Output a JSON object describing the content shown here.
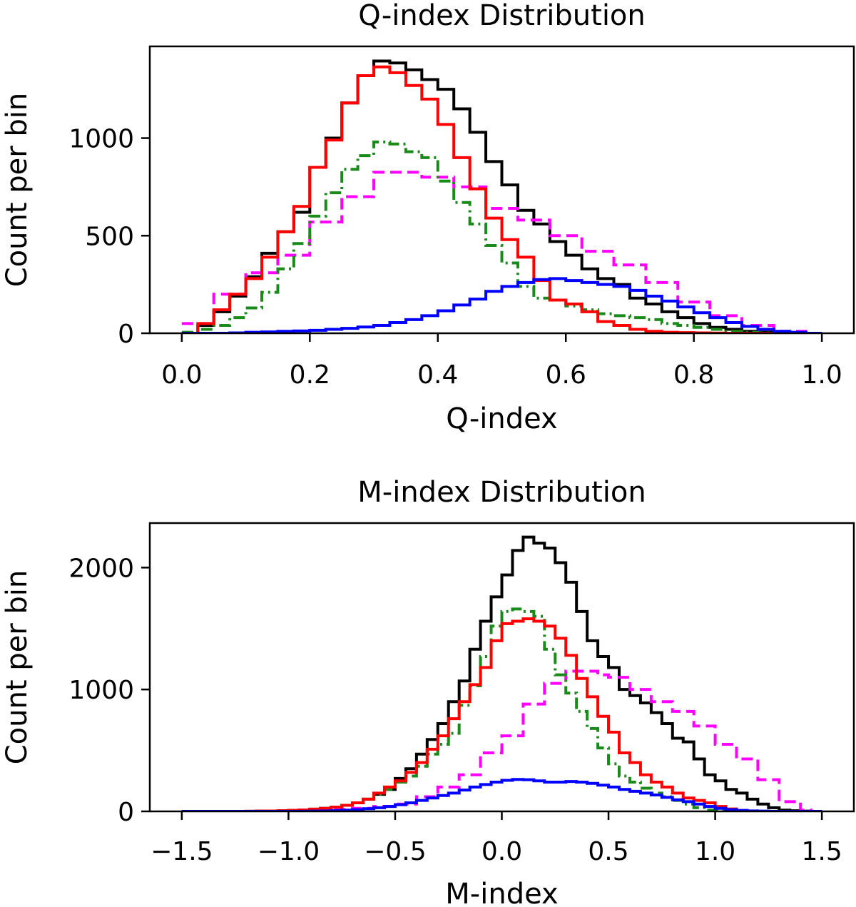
{
  "chart_data": [
    {
      "type": "histogram",
      "title": "Q-index Distribution",
      "xlabel": "Q-index",
      "ylabel": "Count per bin",
      "xlim": [
        -0.05,
        1.05
      ],
      "ylim": [
        0,
        1470
      ],
      "xticks": [
        "0.0",
        "0.2",
        "0.4",
        "0.6",
        "0.8",
        "1.0"
      ],
      "xtick_values": [
        0.0,
        0.2,
        0.4,
        0.6,
        0.8,
        1.0
      ],
      "yticks": [
        "0",
        "500",
        "1000"
      ],
      "ytick_values": [
        0,
        500,
        1000
      ],
      "bin_edges_start": 0.0,
      "bin_width": 0.025,
      "series": [
        {
          "color": "#000000",
          "style": "solid",
          "values": [
            0,
            40,
            110,
            190,
            290,
            410,
            520,
            620,
            850,
            1000,
            1180,
            1320,
            1395,
            1385,
            1350,
            1300,
            1250,
            1150,
            1030,
            880,
            760,
            630,
            560,
            470,
            400,
            330,
            280,
            250,
            180,
            150,
            110,
            80,
            50,
            30,
            20,
            10,
            5,
            2,
            1,
            0
          ]
        },
        {
          "color": "#ff00ff",
          "style": "dashed",
          "values": [
            50,
            50,
            200,
            200,
            310,
            310,
            400,
            400,
            570,
            570,
            700,
            700,
            825,
            825,
            825,
            800,
            800,
            750,
            750,
            640,
            640,
            580,
            580,
            500,
            500,
            420,
            420,
            350,
            350,
            260,
            260,
            160,
            160,
            90,
            90,
            40,
            40,
            10,
            10,
            0
          ]
        },
        {
          "color": "#1a8a1a",
          "style": "dashdot",
          "values": [
            5,
            20,
            40,
            80,
            130,
            210,
            330,
            460,
            600,
            720,
            840,
            910,
            980,
            970,
            930,
            900,
            780,
            670,
            560,
            450,
            360,
            240,
            180,
            170,
            140,
            120,
            100,
            90,
            80,
            70,
            50,
            40,
            30,
            20,
            10,
            5,
            2,
            1,
            0,
            0
          ]
        },
        {
          "color": "#ff0000",
          "style": "solid",
          "values": [
            0,
            50,
            120,
            200,
            280,
            390,
            520,
            650,
            850,
            990,
            1180,
            1320,
            1365,
            1335,
            1270,
            1200,
            1070,
            900,
            740,
            590,
            480,
            390,
            270,
            170,
            150,
            110,
            60,
            40,
            20,
            10,
            5,
            3,
            2,
            1,
            0,
            0,
            0,
            0,
            0,
            0
          ]
        },
        {
          "color": "#0000ff",
          "style": "solid",
          "values": [
            0,
            0,
            0,
            2,
            5,
            7,
            10,
            12,
            15,
            20,
            25,
            32,
            40,
            55,
            70,
            90,
            115,
            145,
            175,
            215,
            240,
            260,
            275,
            280,
            270,
            260,
            250,
            240,
            220,
            190,
            165,
            135,
            105,
            80,
            55,
            35,
            20,
            10,
            5,
            0
          ]
        }
      ]
    },
    {
      "type": "histogram",
      "title": "M-index Distribution",
      "xlabel": "M-index",
      "ylabel": "Count per bin",
      "xlim": [
        -1.65,
        1.65
      ],
      "ylim": [
        0,
        2365
      ],
      "xticks": [
        "−1.5",
        "−1.0",
        "−0.5",
        "0.0",
        "0.5",
        "1.0",
        "1.5"
      ],
      "xtick_values": [
        -1.5,
        -1.0,
        -0.5,
        0.0,
        0.5,
        1.0,
        1.5
      ],
      "yticks": [
        "0",
        "1000",
        "2000"
      ],
      "ytick_values": [
        0,
        1000,
        2000
      ],
      "bin_edges_start": -1.5,
      "bin_width": 0.05,
      "series": [
        {
          "color": "#000000",
          "style": "solid",
          "values": [
            0,
            0,
            0,
            0,
            0,
            0,
            1,
            2,
            3,
            5,
            8,
            12,
            18,
            25,
            35,
            50,
            70,
            100,
            140,
            180,
            270,
            350,
            470,
            590,
            720,
            900,
            1070,
            1330,
            1560,
            1760,
            1940,
            2140,
            2250,
            2200,
            2160,
            2040,
            1880,
            1640,
            1400,
            1270,
            1180,
            1000,
            950,
            890,
            810,
            720,
            600,
            570,
            430,
            300,
            250,
            180,
            150,
            100,
            60,
            30,
            10,
            5,
            2,
            0
          ]
        },
        {
          "color": "#ff00ff",
          "style": "dashed",
          "values": [
            0,
            0,
            0,
            0,
            0,
            0,
            0,
            0,
            0,
            0,
            3,
            3,
            8,
            8,
            15,
            15,
            25,
            25,
            40,
            40,
            60,
            60,
            120,
            120,
            200,
            200,
            300,
            300,
            480,
            480,
            620,
            620,
            880,
            880,
            1050,
            1050,
            1150,
            1150,
            1150,
            1120,
            1100,
            1100,
            1000,
            1000,
            900,
            900,
            820,
            820,
            700,
            700,
            550,
            550,
            430,
            430,
            260,
            260,
            80,
            80,
            10,
            0
          ]
        },
        {
          "color": "#1a8a1a",
          "style": "dashdot",
          "values": [
            0,
            0,
            0,
            0,
            0,
            0,
            0,
            1,
            2,
            4,
            6,
            10,
            16,
            24,
            35,
            50,
            70,
            100,
            140,
            180,
            240,
            290,
            370,
            470,
            550,
            640,
            870,
            1030,
            1270,
            1520,
            1640,
            1660,
            1640,
            1600,
            1330,
            1120,
            970,
            820,
            680,
            520,
            390,
            290,
            240,
            190,
            150,
            120,
            90,
            60,
            30,
            10,
            5,
            2,
            0,
            0,
            0,
            0,
            0,
            0,
            0,
            0
          ]
        },
        {
          "color": "#ff0000",
          "style": "solid",
          "values": [
            0,
            0,
            0,
            0,
            0,
            0,
            1,
            2,
            3,
            5,
            8,
            12,
            18,
            25,
            35,
            50,
            70,
            100,
            150,
            200,
            250,
            320,
            400,
            510,
            620,
            760,
            900,
            1040,
            1180,
            1400,
            1540,
            1560,
            1580,
            1560,
            1520,
            1420,
            1280,
            1090,
            940,
            780,
            650,
            480,
            400,
            300,
            240,
            200,
            150,
            110,
            90,
            70,
            40,
            20,
            5,
            2,
            0,
            0,
            0,
            0,
            0,
            0
          ]
        },
        {
          "color": "#0000ff",
          "style": "solid",
          "values": [
            0,
            0,
            0,
            0,
            0,
            0,
            0,
            0,
            0,
            0,
            0,
            1,
            2,
            4,
            6,
            10,
            15,
            22,
            30,
            40,
            55,
            70,
            90,
            110,
            130,
            150,
            175,
            200,
            220,
            240,
            255,
            262,
            260,
            250,
            240,
            240,
            245,
            240,
            230,
            215,
            200,
            180,
            165,
            150,
            135,
            115,
            95,
            80,
            60,
            40,
            25,
            15,
            8,
            4,
            2,
            0,
            0,
            0,
            0,
            0
          ]
        }
      ]
    }
  ]
}
